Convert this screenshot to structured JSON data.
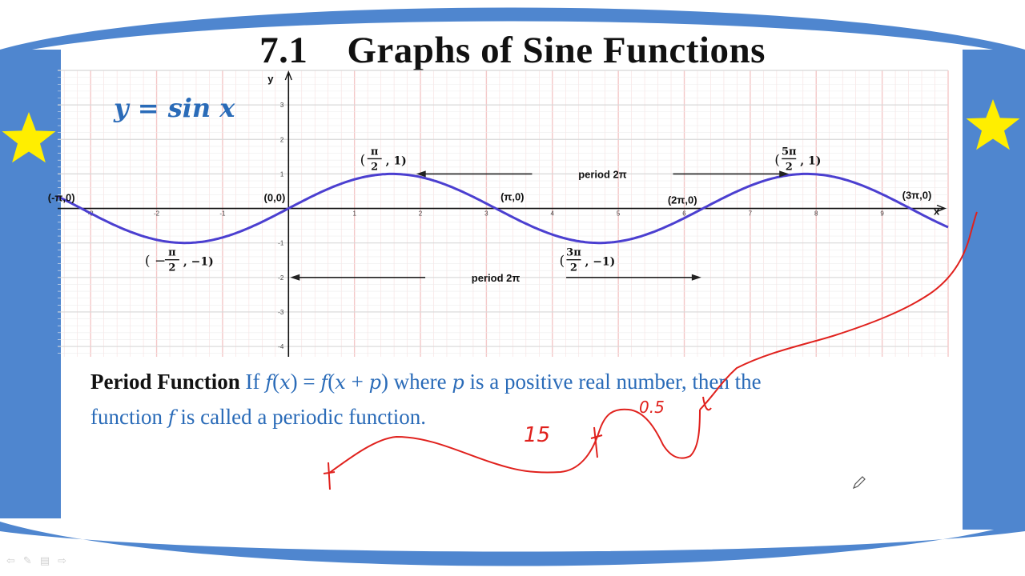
{
  "slide": {
    "title": "7.1    Graphs of Sine Functions",
    "equation": "y = sin x",
    "definition": {
      "term": "Period Function",
      "line1_a": " If ",
      "line1_f1": "f",
      "line1_b": "(",
      "line1_x1": "x",
      "line1_c": ") = ",
      "line1_f2": "f",
      "line1_d": "(",
      "line1_x2": "x",
      "line1_e": " + ",
      "line1_p1": "p",
      "line1_g": ") where ",
      "line1_p2": "p",
      "line1_h": " is a positive real number, then the",
      "line2_a": "function ",
      "line2_f": "f",
      "line2_b": " is called a periodic function."
    },
    "colors": {
      "frame_blue": "#4f86cf",
      "star_yellow": "#ffee00",
      "curve": "#4b3fd0",
      "grid_pink": "#f4c8c8",
      "grid_gray": "#d8d8d8",
      "text_blue": "#2a6bb8",
      "ink_red": "#e0211d"
    },
    "handwriting": [
      "15",
      "0.5"
    ]
  },
  "chart_data": {
    "type": "line",
    "function": "y = sin x",
    "xlabel": "x",
    "ylabel": "y",
    "xlim": [
      -3.5,
      10
    ],
    "ylim": [
      -4.3,
      4
    ],
    "x_ticks": [
      -3,
      -2,
      -1,
      1,
      2,
      3,
      4,
      5,
      6,
      7,
      8,
      9
    ],
    "y_ticks": [
      -4,
      -3,
      -2,
      -1,
      1,
      2,
      3
    ],
    "grid": true,
    "series": [
      {
        "x": [
          -3.5,
          -3.0,
          -2.5,
          -2.0,
          -1.5,
          -1.0,
          -0.5,
          0.0,
          0.5,
          1.0,
          1.5,
          2.0,
          2.5,
          3.0,
          3.5,
          4.0,
          4.5,
          5.0,
          5.5,
          6.0,
          6.5,
          7.0,
          7.5,
          8.0,
          8.5,
          9.0,
          9.5,
          10.0
        ],
        "y": [
          0.351,
          -0.141,
          -0.598,
          -0.909,
          -0.997,
          -0.841,
          -0.479,
          0.0,
          0.479,
          0.841,
          0.997,
          0.909,
          0.598,
          0.141,
          -0.351,
          -0.757,
          -0.978,
          -0.959,
          -0.706,
          -0.279,
          0.215,
          0.657,
          0.938,
          0.989,
          0.798,
          0.412,
          -0.075,
          -0.544
        ]
      }
    ],
    "annotations": [
      {
        "label": "(-π,0)",
        "x": -3.1416,
        "y": 0
      },
      {
        "label": "(0,0)",
        "x": 0,
        "y": 0
      },
      {
        "label": "(π,0)",
        "x": 3.1416,
        "y": 0
      },
      {
        "label": "(2π,0)",
        "x": 6.2832,
        "y": 0
      },
      {
        "label": "(3π,0)",
        "x": 9.4248,
        "y": 0
      },
      {
        "label": "(π/2 , 1)",
        "num": "π",
        "den": "2",
        "val": "1",
        "x": 1.5708,
        "y": 1
      },
      {
        "label": "(5π/2 , 1)",
        "num": "5π",
        "den": "2",
        "val": "1",
        "x": 7.854,
        "y": 1
      },
      {
        "label": "(−π/2 , −1)",
        "num": "π",
        "den": "2",
        "val": "−1",
        "neg": true,
        "x": -1.5708,
        "y": -1
      },
      {
        "label": "(3π/2 , −1)",
        "num": "3π",
        "den": "2",
        "val": "−1",
        "x": 4.7124,
        "y": -1
      }
    ],
    "period_arrows": [
      {
        "label": "period 2π",
        "from": 1.5708,
        "to": 7.854,
        "y": 1
      },
      {
        "label": "period 2π",
        "from": 0,
        "to": 6.2832,
        "y": -2
      }
    ]
  }
}
